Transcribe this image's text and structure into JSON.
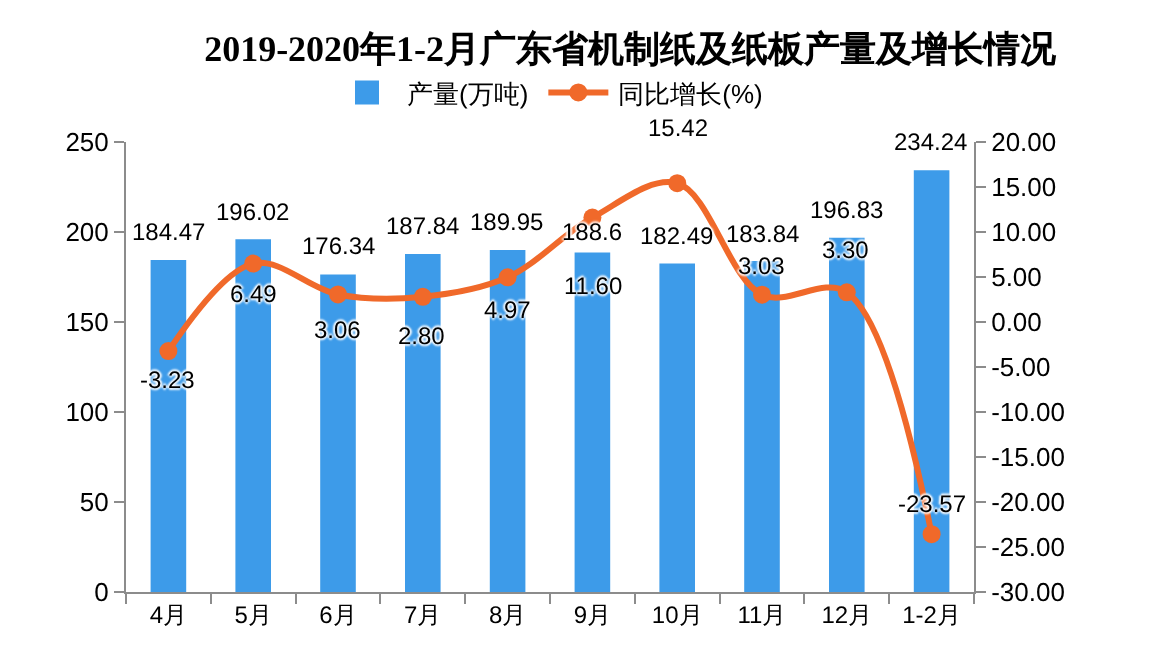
{
  "chart_data": {
    "type": "bar",
    "title": "2019-2020年1-2月广东省机制纸及纸板产量及增长情况",
    "categories": [
      "4月",
      "5月",
      "6月",
      "7月",
      "8月",
      "9月",
      "10月",
      "11月",
      "12月",
      "1-2月"
    ],
    "series": [
      {
        "name": "产量(万吨)",
        "color": "#3d9be9",
        "values": [
          184.47,
          196.02,
          176.34,
          187.84,
          189.95,
          188.6,
          182.49,
          183.84,
          196.83,
          234.24
        ],
        "value_labels": [
          "184.47",
          "196.02",
          "176.34",
          "187.84",
          "189.95",
          "188.6",
          "182.49",
          "183.84",
          "196.83",
          "234.24"
        ]
      },
      {
        "name": "同比增长(%)",
        "type": "line",
        "axis": "y2",
        "color": "#f0692a",
        "values": [
          -3.23,
          6.49,
          3.06,
          2.8,
          4.97,
          11.6,
          15.42,
          3.03,
          3.3,
          -23.57
        ],
        "value_labels": [
          "-3.23",
          "6.49",
          "3.06",
          "2.80",
          "4.97",
          "11.60",
          "15.42",
          "3.03",
          "3.30",
          "-23.57"
        ]
      }
    ],
    "ylim": [
      0,
      250
    ],
    "yticks": [
      0,
      50,
      100,
      150,
      200,
      250
    ],
    "y2lim": [
      -30,
      20
    ],
    "y2ticks": [
      {
        "value": -30,
        "label": "-30.00"
      },
      {
        "value": -25,
        "label": "-25.00"
      },
      {
        "value": -20,
        "label": "-20.00"
      },
      {
        "value": -15,
        "label": "-15.00"
      },
      {
        "value": -10,
        "label": "-10.00"
      },
      {
        "value": -5,
        "label": "-5.00"
      },
      {
        "value": 0,
        "label": "0.00"
      },
      {
        "value": 5,
        "label": "5.00"
      },
      {
        "value": 10,
        "label": "10.00"
      },
      {
        "value": 15,
        "label": "15.00"
      },
      {
        "value": 20,
        "label": "20.00"
      }
    ],
    "grid": false,
    "legend": "top",
    "marker": "circle",
    "line_style": "solid"
  }
}
